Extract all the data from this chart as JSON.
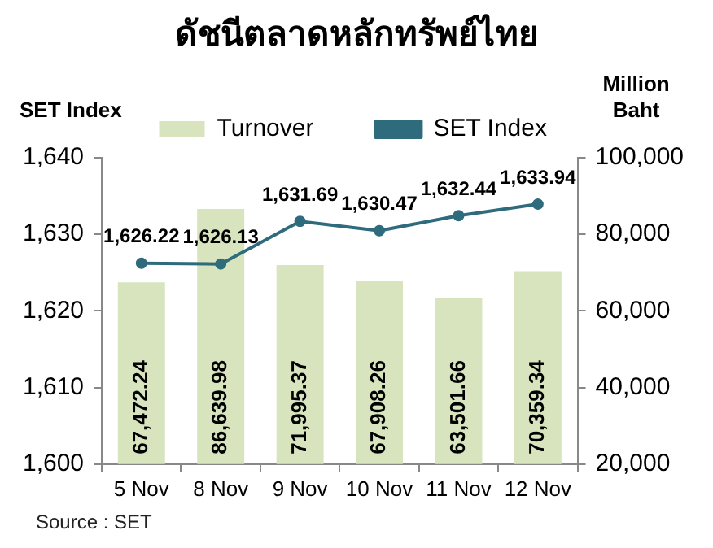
{
  "chart_data": {
    "type": "bar",
    "title": "ดัชนีตลาดหลักทรัพย์ไทย",
    "ylabel": "SET Index",
    "y2label": "Million Baht",
    "categories": [
      "5 Nov",
      "8 Nov",
      "9 Nov",
      "10 Nov",
      "11 Nov",
      "12 Nov"
    ],
    "series": [
      {
        "name": "Turnover",
        "axis": "y2",
        "color": "#d7e4bd",
        "values": [
          67472.24,
          86639.98,
          71995.37,
          67908.26,
          63501.66,
          70359.34
        ],
        "value_labels": [
          "67,472.24",
          "86,639.98",
          "71,995.37",
          "67,908.26",
          "63,501.66",
          "70,359.34"
        ]
      },
      {
        "name": "SET Index",
        "type": "line",
        "axis": "y",
        "color": "#2e6b7c",
        "values": [
          1626.22,
          1626.13,
          1631.69,
          1630.47,
          1632.44,
          1633.94
        ],
        "value_labels": [
          "1,626.22",
          "1,626.13",
          "1,631.69",
          "1,630.47",
          "1,632.44",
          "1,633.94"
        ]
      }
    ],
    "ylim": [
      1600,
      1640
    ],
    "yticks": [
      {
        "value": 1600,
        "label": "1,600"
      },
      {
        "value": 1610,
        "label": "1,610"
      },
      {
        "value": 1620,
        "label": "1,620"
      },
      {
        "value": 1630,
        "label": "1,630"
      },
      {
        "value": 1640,
        "label": "1,640"
      }
    ],
    "y2lim": [
      20000,
      100000
    ],
    "y2ticks": [
      {
        "value": 20000,
        "label": "20,000"
      },
      {
        "value": 40000,
        "label": "40,000"
      },
      {
        "value": 60000,
        "label": "60,000"
      },
      {
        "value": 80000,
        "label": "80,000"
      },
      {
        "value": 100000,
        "label": "100,000"
      }
    ],
    "grid": false,
    "legend": "top",
    "marker": "circle",
    "line_style": "solid",
    "annotations": [
      "Source : SET"
    ]
  }
}
